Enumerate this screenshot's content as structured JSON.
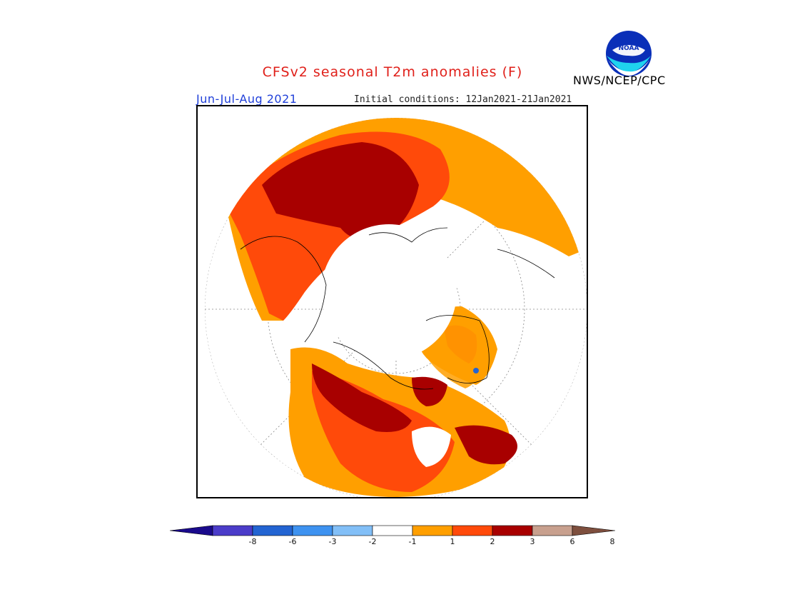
{
  "header": {
    "title": "CFSv2 seasonal T2m anomalies (F)",
    "period": "Jun-Jul-Aug 2021",
    "initial_conditions": "Initial conditions: 12Jan2021-21Jan2021",
    "agency": "NWS/NCEP/CPC",
    "logo_text": "NOAA"
  },
  "map": {
    "projection": "north polar stereographic",
    "grid": true
  },
  "legend": {
    "ticks": [
      "-8",
      "-6",
      "-3",
      "-2",
      "-1",
      "1",
      "2",
      "3",
      "6",
      "8"
    ],
    "colors": [
      "#1a0a8c",
      "#4b3cc9",
      "#2364d2",
      "#3e92f0",
      "#82bff7",
      "#ffffff",
      "#ff9f00",
      "#ff4a0a",
      "#a80000",
      "#c8a08e",
      "#7e4f3e"
    ]
  },
  "colors": {
    "title": "#e0201a",
    "period": "#1f3fd9",
    "orange": "#ff9f00",
    "red_orange": "#ff4a0a",
    "dark_red": "#a80000"
  }
}
